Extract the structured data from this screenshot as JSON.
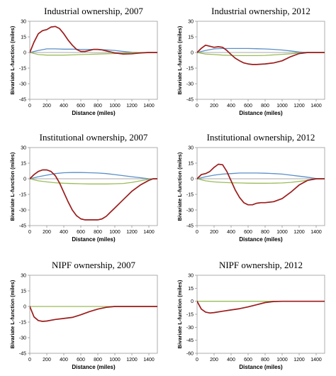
{
  "chart_data": [
    {
      "type": "line",
      "title": "Industrial ownership, 2007",
      "xlabel": "Distance (miles)",
      "ylabel": "Bivariate L-function (miles)",
      "xlim": [
        0,
        1500
      ],
      "xticks": [
        0,
        200,
        400,
        600,
        800,
        1000,
        1200,
        1400
      ],
      "ylim": [
        -45,
        30
      ],
      "yticks": [
        -45,
        -30,
        -15,
        0,
        15,
        30
      ],
      "series": [
        {
          "color": "#5b8fc6",
          "x": [
            0,
            100,
            200,
            300,
            400,
            500,
            600,
            700,
            800,
            900,
            1000,
            1100,
            1200,
            1300,
            1400,
            1500
          ],
          "y": [
            0,
            2,
            3.5,
            3.5,
            3.2,
            3.2,
            3,
            3,
            2.8,
            2.5,
            2,
            1,
            0.2,
            0,
            0,
            0
          ]
        },
        {
          "color": "#9bbb59",
          "x": [
            0,
            100,
            200,
            300,
            400,
            500,
            600,
            700,
            800,
            900,
            1000,
            1100,
            1200,
            1300,
            1400,
            1500
          ],
          "y": [
            0,
            -2,
            -2.5,
            -2.5,
            -2.5,
            -2.3,
            -2,
            -1.8,
            -1.5,
            -1.2,
            -1,
            -0.6,
            -0.2,
            0,
            0,
            0
          ]
        },
        {
          "color": "#9c1c1c",
          "x": [
            0,
            50,
            100,
            150,
            200,
            250,
            300,
            350,
            400,
            450,
            500,
            550,
            600,
            650,
            700,
            750,
            800,
            850,
            900,
            1000,
            1100,
            1200,
            1300,
            1400,
            1500
          ],
          "y": [
            0,
            10,
            18,
            21,
            22,
            24.5,
            25,
            23,
            18,
            12,
            7,
            3,
            1,
            1,
            2,
            3,
            3,
            2.5,
            1.5,
            -0.5,
            -1.5,
            -1.2,
            -0.5,
            0,
            0
          ]
        }
      ]
    },
    {
      "type": "line",
      "title": "Industrial ownership, 2012",
      "xlabel": "Distance (miles)",
      "ylabel": "Bivariate L-function (miles)",
      "xlim": [
        0,
        1500
      ],
      "xticks": [
        0,
        200,
        400,
        600,
        800,
        1000,
        1200,
        1400
      ],
      "ylim": [
        -45,
        30
      ],
      "yticks": [
        -45,
        -30,
        -15,
        0,
        15,
        30
      ],
      "series": [
        {
          "color": "#5b8fc6",
          "x": [
            0,
            100,
            200,
            300,
            400,
            500,
            600,
            700,
            800,
            900,
            1000,
            1100,
            1200,
            1300,
            1400,
            1500
          ],
          "y": [
            0,
            2,
            3.5,
            3.8,
            3.8,
            3.8,
            3.8,
            3.6,
            3.4,
            3,
            2.4,
            1.5,
            0.5,
            0,
            0,
            0
          ]
        },
        {
          "color": "#9bbb59",
          "x": [
            0,
            100,
            200,
            300,
            400,
            500,
            600,
            700,
            800,
            900,
            1000,
            1100,
            1200,
            1300,
            1400,
            1500
          ],
          "y": [
            0,
            -1.5,
            -2,
            -2.5,
            -2.8,
            -3,
            -3,
            -3,
            -2.8,
            -2.3,
            -1.8,
            -1.2,
            -0.5,
            0,
            0,
            0
          ]
        },
        {
          "color": "#9c1c1c",
          "x": [
            0,
            50,
            100,
            150,
            200,
            250,
            300,
            350,
            400,
            450,
            500,
            550,
            600,
            650,
            700,
            800,
            900,
            1000,
            1100,
            1200,
            1300,
            1400,
            1500
          ],
          "y": [
            0,
            4,
            7,
            6,
            5,
            5.5,
            5,
            2,
            -2,
            -5.5,
            -8,
            -10,
            -11,
            -11.5,
            -11.5,
            -11,
            -10,
            -8,
            -4,
            -1,
            0,
            0,
            0
          ]
        }
      ]
    },
    {
      "type": "line",
      "title": "Institutional ownership, 2007",
      "xlabel": "Distance (miles)",
      "ylabel": "Bivariate L-function (miles)",
      "xlim": [
        0,
        1500
      ],
      "xticks": [
        0,
        200,
        400,
        600,
        800,
        1000,
        1200,
        1400
      ],
      "ylim": [
        -45,
        30
      ],
      "yticks": [
        -45,
        -30,
        -15,
        0,
        15,
        30
      ],
      "series": [
        {
          "color": "#5b8fc6",
          "x": [
            0,
            100,
            200,
            300,
            400,
            500,
            600,
            700,
            800,
            900,
            1000,
            1100,
            1200,
            1300,
            1400,
            1500
          ],
          "y": [
            0,
            2,
            3.5,
            5,
            5.8,
            6,
            6,
            5.8,
            5.5,
            5,
            4,
            3,
            2,
            1,
            0,
            0
          ]
        },
        {
          "color": "#9bbb59",
          "x": [
            0,
            100,
            200,
            300,
            400,
            500,
            600,
            700,
            800,
            900,
            1000,
            1100,
            1200,
            1300,
            1400,
            1500
          ],
          "y": [
            0,
            -2,
            -3,
            -3.8,
            -4.3,
            -4.6,
            -4.8,
            -5,
            -5,
            -5,
            -4.8,
            -4.5,
            -3.5,
            -2,
            -0.5,
            0
          ]
        },
        {
          "color": "#9c1c1c",
          "x": [
            0,
            50,
            100,
            150,
            200,
            250,
            300,
            350,
            400,
            450,
            500,
            550,
            600,
            650,
            700,
            750,
            800,
            850,
            900,
            950,
            1000,
            1100,
            1200,
            1300,
            1400,
            1450,
            1500
          ],
          "y": [
            0,
            4,
            7,
            8.5,
            8.5,
            7,
            3,
            -4,
            -13,
            -22,
            -30,
            -35.5,
            -38.5,
            -39.5,
            -39.5,
            -39.5,
            -39.5,
            -38.5,
            -36,
            -32,
            -28,
            -20,
            -12,
            -6,
            -1.5,
            0,
            0
          ]
        }
      ]
    },
    {
      "type": "line",
      "title": "Institutional ownership, 2012",
      "xlabel": "Distance (miles)",
      "ylabel": "Bivariate L-function (miles)",
      "xlim": [
        0,
        1500
      ],
      "xticks": [
        0,
        200,
        400,
        600,
        800,
        1000,
        1200,
        1400
      ],
      "ylim": [
        -45,
        30
      ],
      "yticks": [
        -45,
        -30,
        -15,
        0,
        15,
        30
      ],
      "series": [
        {
          "color": "#5b8fc6",
          "x": [
            0,
            100,
            200,
            300,
            400,
            500,
            600,
            700,
            800,
            900,
            1000,
            1100,
            1200,
            1300,
            1400,
            1500
          ],
          "y": [
            0,
            2,
            3.5,
            4.5,
            5,
            5.5,
            5.5,
            5.5,
            5.3,
            5,
            4.5,
            3.5,
            2.5,
            1.5,
            0.3,
            0
          ]
        },
        {
          "color": "#9bbb59",
          "x": [
            0,
            100,
            200,
            300,
            400,
            500,
            600,
            700,
            800,
            900,
            1000,
            1100,
            1200,
            1300,
            1400,
            1500
          ],
          "y": [
            0,
            -2,
            -3,
            -3.5,
            -3.8,
            -4,
            -4.2,
            -4.3,
            -4.3,
            -4.2,
            -4,
            -3.5,
            -2.5,
            -1.5,
            -0.3,
            0
          ]
        },
        {
          "color": "#9c1c1c",
          "x": [
            0,
            50,
            100,
            150,
            200,
            250,
            300,
            350,
            400,
            450,
            500,
            550,
            600,
            650,
            700,
            750,
            800,
            900,
            1000,
            1100,
            1200,
            1300,
            1400,
            1500
          ],
          "y": [
            0,
            4,
            5,
            7,
            11,
            14,
            13.5,
            7,
            -2,
            -11,
            -18,
            -23,
            -25,
            -25,
            -23.5,
            -23,
            -23,
            -22,
            -19,
            -13,
            -6,
            -1.5,
            0,
            0
          ]
        }
      ]
    },
    {
      "type": "line",
      "title": "NIPF ownership, 2007",
      "xlabel": "Distance (miles)",
      "ylabel": "Bivariate L-function (miles)",
      "xlim": [
        0,
        1500
      ],
      "xticks": [
        0,
        200,
        400,
        600,
        800,
        1000,
        1200,
        1400
      ],
      "ylim": [
        -45,
        30
      ],
      "yticks": [
        -45,
        -30,
        -15,
        0,
        15,
        30
      ],
      "series": [
        {
          "color": "#9bbb59",
          "x": [
            0,
            1500
          ],
          "y": [
            0,
            0
          ]
        },
        {
          "color": "#9c1c1c",
          "x": [
            0,
            50,
            100,
            150,
            200,
            300,
            400,
            500,
            600,
            700,
            800,
            900,
            1000,
            1100,
            1200,
            1300,
            1400,
            1500
          ],
          "y": [
            0,
            -10,
            -13.5,
            -14.3,
            -14,
            -12.5,
            -11.5,
            -10.5,
            -8,
            -5,
            -2.5,
            -0.8,
            0,
            0,
            0,
            0,
            0,
            0
          ]
        }
      ]
    },
    {
      "type": "line",
      "title": "NIPF ownership, 2012",
      "xlabel": "Distance (miles)",
      "ylabel": "Bivariate L-function (miles)",
      "xlim": [
        0,
        1500
      ],
      "xticks": [
        0,
        200,
        400,
        600,
        800,
        1000,
        1200,
        1400
      ],
      "ylim": [
        -60,
        30
      ],
      "yticks": [
        -60,
        -45,
        -30,
        -15,
        0,
        15,
        30
      ],
      "series": [
        {
          "color": "#9bbb59",
          "x": [
            0,
            1500
          ],
          "y": [
            0,
            0
          ]
        },
        {
          "color": "#9c1c1c",
          "x": [
            0,
            50,
            100,
            150,
            200,
            300,
            400,
            500,
            600,
            700,
            800,
            900,
            1000,
            1100,
            1200,
            1300,
            1400,
            1500
          ],
          "y": [
            0,
            -9,
            -12.5,
            -13.5,
            -13,
            -11.5,
            -10,
            -8.5,
            -6.5,
            -4,
            -1.5,
            -0.3,
            0,
            0,
            0,
            0,
            0,
            0
          ]
        }
      ]
    }
  ]
}
